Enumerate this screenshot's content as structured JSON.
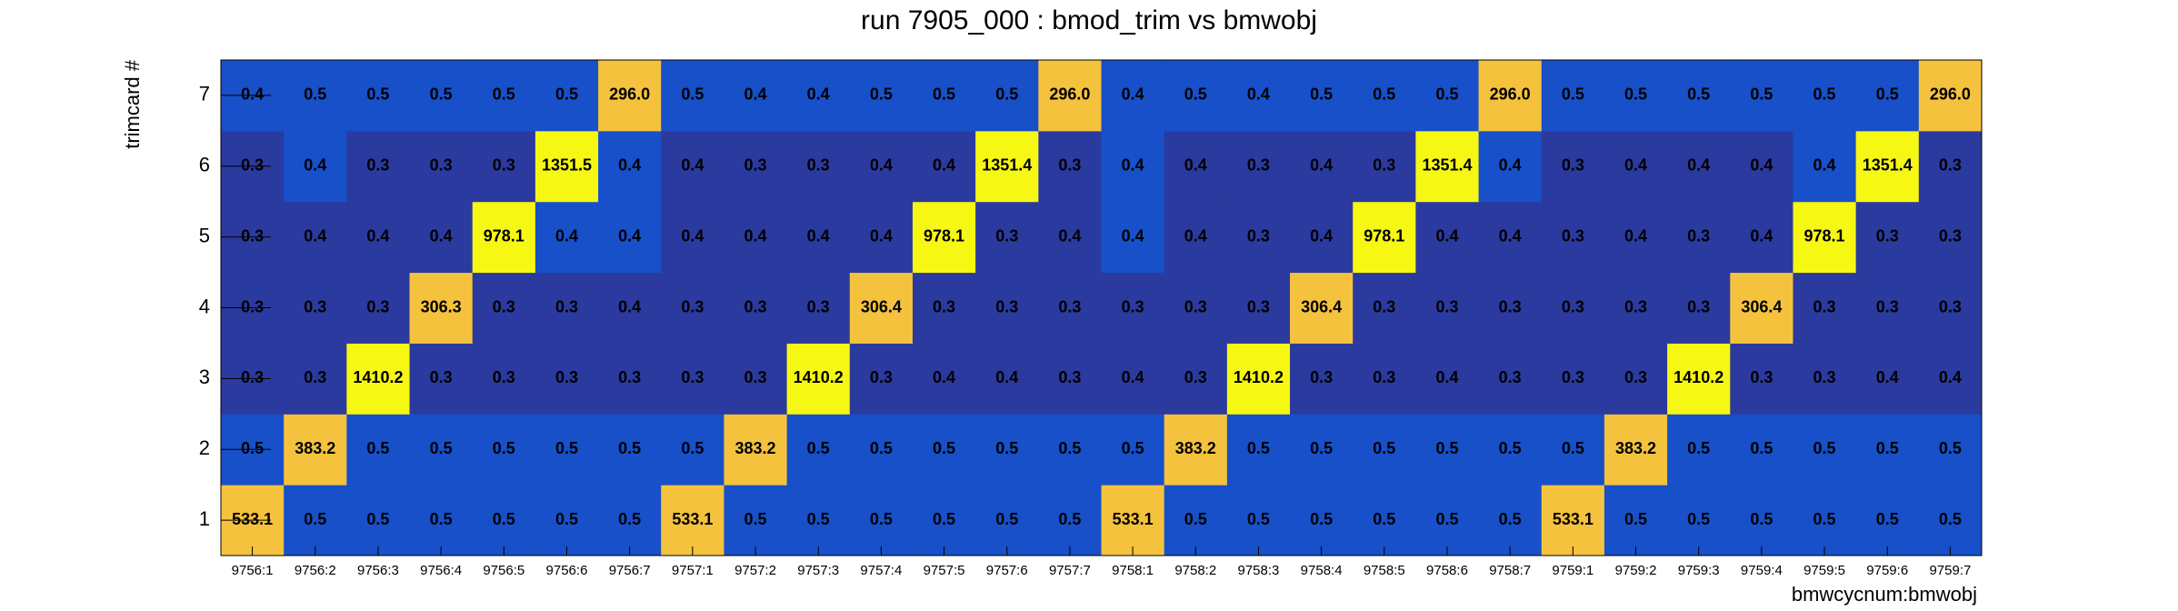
{
  "chart_data": {
    "type": "heatmap",
    "title": "run 7905_000 : bmod_trim vs bmwobj",
    "x_label": "bmwcycnum:bmwobj",
    "y_label": "trimcard #",
    "categories": [
      "9756:1",
      "9756:2",
      "9756:3",
      "9756:4",
      "9756:5",
      "9756:6",
      "9756:7",
      "9757:1",
      "9757:2",
      "9757:3",
      "9757:4",
      "9757:5",
      "9757:6",
      "9757:7",
      "9758:1",
      "9758:2",
      "9758:3",
      "9758:4",
      "9758:5",
      "9758:6",
      "9758:7",
      "9759:1",
      "9759:2",
      "9759:3",
      "9759:4",
      "9759:5",
      "9759:6",
      "9759:7"
    ],
    "y_categories": [
      "1",
      "2",
      "3",
      "4",
      "5",
      "6",
      "7"
    ],
    "series": [
      {
        "values": [
          533.1,
          0.5,
          0.5,
          0.5,
          0.5,
          0.5,
          0.5,
          533.1,
          0.5,
          0.5,
          0.5,
          0.5,
          0.5,
          0.5,
          533.1,
          0.5,
          0.5,
          0.5,
          0.5,
          0.5,
          0.5,
          533.1,
          0.5,
          0.5,
          0.5,
          0.5,
          0.5,
          0.5
        ],
        "value_labels": [
          "533.1",
          "0.5",
          "0.5",
          "0.5",
          "0.5",
          "0.5",
          "0.5",
          "533.1",
          "0.5",
          "0.5",
          "0.5",
          "0.5",
          "0.5",
          "0.5",
          "533.1",
          "0.5",
          "0.5",
          "0.5",
          "0.5",
          "0.5",
          "0.5",
          "533.1",
          "0.5",
          "0.5",
          "0.5",
          "0.5",
          "0.5",
          "0.5"
        ],
        "colors": [
          "#f5c23d",
          "#1750c9",
          "#1750c9",
          "#1750c9",
          "#1750c9",
          "#1750c9",
          "#1750c9",
          "#f5c23d",
          "#1750c9",
          "#1750c9",
          "#1750c9",
          "#1750c9",
          "#1750c9",
          "#1750c9",
          "#f5c23d",
          "#1750c9",
          "#1750c9",
          "#1750c9",
          "#1750c9",
          "#1750c9",
          "#1750c9",
          "#f5c23d",
          "#1750c9",
          "#1750c9",
          "#1750c9",
          "#1750c9",
          "#1750c9",
          "#1750c9"
        ]
      },
      {
        "values": [
          0.5,
          383.2,
          0.5,
          0.5,
          0.5,
          0.5,
          0.5,
          0.5,
          383.2,
          0.5,
          0.5,
          0.5,
          0.5,
          0.5,
          0.5,
          383.2,
          0.5,
          0.5,
          0.5,
          0.5,
          0.5,
          0.5,
          383.2,
          0.5,
          0.5,
          0.5,
          0.5,
          0.5
        ],
        "value_labels": [
          "0.5",
          "383.2",
          "0.5",
          "0.5",
          "0.5",
          "0.5",
          "0.5",
          "0.5",
          "383.2",
          "0.5",
          "0.5",
          "0.5",
          "0.5",
          "0.5",
          "0.5",
          "383.2",
          "0.5",
          "0.5",
          "0.5",
          "0.5",
          "0.5",
          "0.5",
          "383.2",
          "0.5",
          "0.5",
          "0.5",
          "0.5",
          "0.5"
        ],
        "colors": [
          "#1750c9",
          "#f5c23d",
          "#1750c9",
          "#1750c9",
          "#1750c9",
          "#1750c9",
          "#1750c9",
          "#1750c9",
          "#f5c23d",
          "#1750c9",
          "#1750c9",
          "#1750c9",
          "#1750c9",
          "#1750c9",
          "#1750c9",
          "#f5c23d",
          "#1750c9",
          "#1750c9",
          "#1750c9",
          "#1750c9",
          "#1750c9",
          "#1750c9",
          "#f5c23d",
          "#1750c9",
          "#1750c9",
          "#1750c9",
          "#1750c9",
          "#1750c9"
        ]
      },
      {
        "values": [
          0.3,
          0.3,
          1410.2,
          0.3,
          0.3,
          0.3,
          0.3,
          0.3,
          0.3,
          1410.2,
          0.3,
          0.4,
          0.4,
          0.3,
          0.4,
          0.3,
          1410.2,
          0.3,
          0.3,
          0.4,
          0.3,
          0.3,
          0.3,
          1410.2,
          0.3,
          0.3,
          0.4,
          0.4
        ],
        "value_labels": [
          "0.3",
          "0.3",
          "1410.2",
          "0.3",
          "0.3",
          "0.3",
          "0.3",
          "0.3",
          "0.3",
          "1410.2",
          "0.3",
          "0.4",
          "0.4",
          "0.3",
          "0.4",
          "0.3",
          "1410.2",
          "0.3",
          "0.3",
          "0.4",
          "0.3",
          "0.3",
          "0.3",
          "1410.2",
          "0.3",
          "0.3",
          "0.4",
          "0.4"
        ],
        "colors": [
          "#2b3a9e",
          "#2b3a9e",
          "#f7f714",
          "#2b3a9e",
          "#2b3a9e",
          "#2b3a9e",
          "#2b3a9e",
          "#2b3a9e",
          "#2b3a9e",
          "#f7f714",
          "#2b3a9e",
          "#2b3a9e",
          "#2b3a9e",
          "#2b3a9e",
          "#2b3a9e",
          "#2b3a9e",
          "#f7f714",
          "#2b3a9e",
          "#2b3a9e",
          "#2b3a9e",
          "#2b3a9e",
          "#2b3a9e",
          "#2b3a9e",
          "#f7f714",
          "#2b3a9e",
          "#2b3a9e",
          "#2b3a9e",
          "#2b3a9e"
        ]
      },
      {
        "values": [
          0.3,
          0.3,
          0.3,
          306.3,
          0.3,
          0.3,
          0.4,
          0.3,
          0.3,
          0.3,
          306.4,
          0.3,
          0.3,
          0.3,
          0.3,
          0.3,
          0.3,
          306.4,
          0.3,
          0.3,
          0.3,
          0.3,
          0.3,
          0.3,
          306.4,
          0.3,
          0.3,
          0.3
        ],
        "value_labels": [
          "0.3",
          "0.3",
          "0.3",
          "306.3",
          "0.3",
          "0.3",
          "0.4",
          "0.3",
          "0.3",
          "0.3",
          "306.4",
          "0.3",
          "0.3",
          "0.3",
          "0.3",
          "0.3",
          "0.3",
          "306.4",
          "0.3",
          "0.3",
          "0.3",
          "0.3",
          "0.3",
          "0.3",
          "306.4",
          "0.3",
          "0.3",
          "0.3"
        ],
        "colors": [
          "#2b3a9e",
          "#2b3a9e",
          "#2b3a9e",
          "#f5c23d",
          "#2b3a9e",
          "#2b3a9e",
          "#2b3a9e",
          "#2b3a9e",
          "#2b3a9e",
          "#2b3a9e",
          "#f5c23d",
          "#2b3a9e",
          "#2b3a9e",
          "#2b3a9e",
          "#2b3a9e",
          "#2b3a9e",
          "#2b3a9e",
          "#f5c23d",
          "#2b3a9e",
          "#2b3a9e",
          "#2b3a9e",
          "#2b3a9e",
          "#2b3a9e",
          "#2b3a9e",
          "#f5c23d",
          "#2b3a9e",
          "#2b3a9e",
          "#2b3a9e"
        ]
      },
      {
        "values": [
          0.3,
          0.4,
          0.4,
          0.4,
          978.1,
          0.4,
          0.4,
          0.4,
          0.4,
          0.4,
          0.4,
          978.1,
          0.3,
          0.4,
          0.4,
          0.4,
          0.3,
          0.4,
          978.1,
          0.4,
          0.4,
          0.3,
          0.4,
          0.3,
          0.4,
          978.1,
          0.3,
          0.3
        ],
        "value_labels": [
          "0.3",
          "0.4",
          "0.4",
          "0.4",
          "978.1",
          "0.4",
          "0.4",
          "0.4",
          "0.4",
          "0.4",
          "0.4",
          "978.1",
          "0.3",
          "0.4",
          "0.4",
          "0.4",
          "0.3",
          "0.4",
          "978.1",
          "0.4",
          "0.4",
          "0.3",
          "0.4",
          "0.3",
          "0.4",
          "978.1",
          "0.3",
          "0.3"
        ],
        "colors": [
          "#2b3a9e",
          "#2b3a9e",
          "#2b3a9e",
          "#2b3a9e",
          "#f7f714",
          "#1750c9",
          "#1750c9",
          "#2b3a9e",
          "#2b3a9e",
          "#2b3a9e",
          "#2b3a9e",
          "#f7f714",
          "#2b3a9e",
          "#2b3a9e",
          "#1750c9",
          "#2b3a9e",
          "#2b3a9e",
          "#2b3a9e",
          "#f7f714",
          "#2b3a9e",
          "#2b3a9e",
          "#2b3a9e",
          "#2b3a9e",
          "#2b3a9e",
          "#2b3a9e",
          "#f7f714",
          "#2b3a9e",
          "#2b3a9e"
        ]
      },
      {
        "values": [
          0.3,
          0.4,
          0.3,
          0.3,
          0.3,
          1351.5,
          0.4,
          0.4,
          0.3,
          0.3,
          0.4,
          0.4,
          1351.4,
          0.3,
          0.4,
          0.4,
          0.3,
          0.4,
          0.3,
          1351.4,
          0.4,
          0.3,
          0.4,
          0.4,
          0.4,
          0.4,
          1351.4,
          0.3
        ],
        "value_labels": [
          "0.3",
          "0.4",
          "0.3",
          "0.3",
          "0.3",
          "1351.5",
          "0.4",
          "0.4",
          "0.3",
          "0.3",
          "0.4",
          "0.4",
          "1351.4",
          "0.3",
          "0.4",
          "0.4",
          "0.3",
          "0.4",
          "0.3",
          "1351.4",
          "0.4",
          "0.3",
          "0.4",
          "0.4",
          "0.4",
          "0.4",
          "1351.4",
          "0.3"
        ],
        "colors": [
          "#2b3a9e",
          "#1750c9",
          "#2b3a9e",
          "#2b3a9e",
          "#2b3a9e",
          "#f7f714",
          "#1750c9",
          "#2b3a9e",
          "#2b3a9e",
          "#2b3a9e",
          "#2b3a9e",
          "#2b3a9e",
          "#f7f714",
          "#2b3a9e",
          "#1750c9",
          "#2b3a9e",
          "#2b3a9e",
          "#2b3a9e",
          "#2b3a9e",
          "#f7f714",
          "#1750c9",
          "#2b3a9e",
          "#2b3a9e",
          "#2b3a9e",
          "#2b3a9e",
          "#1750c9",
          "#f7f714",
          "#2b3a9e"
        ]
      },
      {
        "values": [
          0.4,
          0.5,
          0.5,
          0.5,
          0.5,
          0.5,
          296.0,
          0.5,
          0.4,
          0.4,
          0.5,
          0.5,
          0.5,
          296.0,
          0.4,
          0.5,
          0.4,
          0.5,
          0.5,
          0.5,
          296.0,
          0.5,
          0.5,
          0.5,
          0.5,
          0.5,
          0.5,
          296.0
        ],
        "value_labels": [
          "0.4",
          "0.5",
          "0.5",
          "0.5",
          "0.5",
          "0.5",
          "296.0",
          "0.5",
          "0.4",
          "0.4",
          "0.5",
          "0.5",
          "0.5",
          "296.0",
          "0.4",
          "0.5",
          "0.4",
          "0.5",
          "0.5",
          "0.5",
          "296.0",
          "0.5",
          "0.5",
          "0.5",
          "0.5",
          "0.5",
          "0.5",
          "296.0"
        ],
        "colors": [
          "#1750c9",
          "#1750c9",
          "#1750c9",
          "#1750c9",
          "#1750c9",
          "#1750c9",
          "#f5c23d",
          "#1750c9",
          "#1750c9",
          "#1750c9",
          "#1750c9",
          "#1750c9",
          "#1750c9",
          "#f5c23d",
          "#1750c9",
          "#1750c9",
          "#1750c9",
          "#1750c9",
          "#1750c9",
          "#1750c9",
          "#f5c23d",
          "#1750c9",
          "#1750c9",
          "#1750c9",
          "#1750c9",
          "#1750c9",
          "#1750c9",
          "#f5c23d"
        ]
      }
    ]
  }
}
